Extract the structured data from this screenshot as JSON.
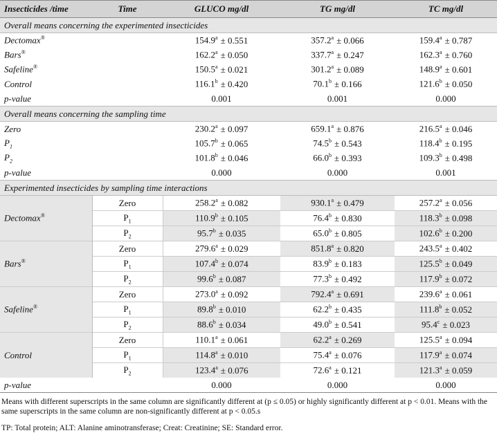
{
  "table": {
    "header": [
      "Insecticides /time",
      "Time",
      "GLUCO mg/dl",
      "TG mg/dl",
      "TC mg/dl"
    ],
    "sections": [
      {
        "title": "Overall means concerning the experimented insecticides",
        "rows": [
          {
            "label": [
              "Dectomax",
              "®"
            ],
            "values": [
              [
                "154.9",
                "a",
                "± 0.551"
              ],
              [
                "357.2",
                "a",
                "± 0.066"
              ],
              [
                "159.4",
                "a",
                "± 0.787"
              ]
            ]
          },
          {
            "label": [
              "Bars",
              "®"
            ],
            "values": [
              [
                "162.2",
                "a",
                "± 0.050"
              ],
              [
                "337.7",
                "a",
                "± 0.247"
              ],
              [
                "162.3",
                "a",
                "± 0.760"
              ]
            ]
          },
          {
            "label": [
              "Safeline",
              "®"
            ],
            "values": [
              [
                "150.5",
                "a",
                "± 0.021"
              ],
              [
                "301.2",
                "a",
                "± 0.089"
              ],
              [
                "148.9",
                "a",
                "± 0.601"
              ]
            ]
          },
          {
            "label": [
              "Control"
            ],
            "values": [
              [
                "116.1",
                "b",
                "± 0.420"
              ],
              [
                "70.1",
                "b",
                "± 0.166"
              ],
              [
                "121.6",
                "b",
                "± 0.050"
              ]
            ]
          },
          {
            "label": [
              "p-value"
            ],
            "values": [
              [
                "0.001"
              ],
              [
                "0.001"
              ],
              [
                "0.000"
              ]
            ]
          }
        ]
      },
      {
        "title": "Overall means concerning the sampling time",
        "rows": [
          {
            "label": [
              "Zero"
            ],
            "values": [
              [
                "230.2",
                "a",
                "± 0.097"
              ],
              [
                "659.1",
                "a",
                "± 0.876"
              ],
              [
                "216.5",
                "a",
                "± 0.046"
              ]
            ]
          },
          {
            "label": [
              "P",
              "1"
            ],
            "values": [
              [
                "105.7",
                "b",
                "± 0.065"
              ],
              [
                "74.5",
                "b",
                "± 0.543"
              ],
              [
                "118.4",
                "b",
                "± 0.195"
              ]
            ]
          },
          {
            "label": [
              "P",
              "2"
            ],
            "values": [
              [
                "101.8",
                "b",
                "± 0.046"
              ],
              [
                "66.0",
                "b",
                "± 0.393"
              ],
              [
                "109.3",
                "b",
                "± 0.498"
              ]
            ]
          },
          {
            "label": [
              "p-value"
            ],
            "values": [
              [
                "0.000"
              ],
              [
                "0.000"
              ],
              [
                "0.001"
              ]
            ]
          }
        ]
      },
      {
        "title": "Experimented insecticides by sampling time interactions",
        "groups": [
          {
            "label": [
              "Dectomax",
              "®"
            ],
            "rows": [
              {
                "time": [
                  "Zero"
                ],
                "values": [
                  [
                    "258.2",
                    "a",
                    "± 0.082"
                  ],
                  [
                    "930.1",
                    "a",
                    "± 0.479"
                  ],
                  [
                    "257.2",
                    "a",
                    "± 0.056"
                  ]
                ]
              },
              {
                "time": [
                  "P",
                  "1"
                ],
                "values": [
                  [
                    "110.9",
                    "b",
                    "± 0.105"
                  ],
                  [
                    "76.4",
                    "b",
                    "± 0.830"
                  ],
                  [
                    "118.3",
                    "b",
                    "± 0.098"
                  ]
                ]
              },
              {
                "time": [
                  "P",
                  "2"
                ],
                "values": [
                  [
                    "95.7",
                    "b",
                    "± 0.035"
                  ],
                  [
                    "65.0",
                    "b",
                    "± 0.805"
                  ],
                  [
                    "102.6",
                    "b",
                    "± 0.200"
                  ]
                ]
              }
            ]
          },
          {
            "label": [
              "Bars",
              "®"
            ],
            "rows": [
              {
                "time": [
                  "Zero"
                ],
                "values": [
                  [
                    "279.6",
                    "a",
                    "± 0.029"
                  ],
                  [
                    "851.8",
                    "a",
                    "± 0.820"
                  ],
                  [
                    "243.5",
                    "a",
                    "± 0.402"
                  ]
                ]
              },
              {
                "time": [
                  "P",
                  "1"
                ],
                "values": [
                  [
                    "107.4",
                    "b",
                    "± 0.074"
                  ],
                  [
                    "83.9",
                    "b",
                    "± 0.183"
                  ],
                  [
                    "125.5",
                    "b",
                    "± 0.049"
                  ]
                ]
              },
              {
                "time": [
                  "P",
                  "2"
                ],
                "values": [
                  [
                    "99.6",
                    "b",
                    "± 0.087"
                  ],
                  [
                    "77.3",
                    "b",
                    "± 0.492"
                  ],
                  [
                    "117.9",
                    "b",
                    "± 0.072"
                  ]
                ]
              }
            ]
          },
          {
            "label": [
              "Safeline",
              "®"
            ],
            "rows": [
              {
                "time": [
                  "Zero"
                ],
                "values": [
                  [
                    "273.0",
                    "a",
                    "± 0.092"
                  ],
                  [
                    "792.4",
                    "a",
                    "± 0.691"
                  ],
                  [
                    "239.6",
                    "a",
                    "± 0.061"
                  ]
                ]
              },
              {
                "time": [
                  "P",
                  "1"
                ],
                "values": [
                  [
                    "89.8",
                    "b",
                    "± 0.010"
                  ],
                  [
                    "62.2",
                    "b",
                    "± 0.435"
                  ],
                  [
                    "111.8",
                    "b",
                    "± 0.052"
                  ]
                ]
              },
              {
                "time": [
                  "P",
                  "2"
                ],
                "values": [
                  [
                    "88.6",
                    "b",
                    "± 0.034"
                  ],
                  [
                    "49.0",
                    "b",
                    "± 0.541"
                  ],
                  [
                    "95.4",
                    "c",
                    "± 0.023"
                  ]
                ]
              }
            ]
          },
          {
            "label": [
              "Control"
            ],
            "rows": [
              {
                "time": [
                  "Zero"
                ],
                "values": [
                  [
                    "110.1",
                    "a",
                    "± 0.061"
                  ],
                  [
                    "62.2",
                    "a",
                    "± 0.269"
                  ],
                  [
                    "125.5",
                    "a",
                    "± 0.094"
                  ]
                ]
              },
              {
                "time": [
                  "P",
                  "1"
                ],
                "values": [
                  [
                    "114.8",
                    "a",
                    "± 0.010"
                  ],
                  [
                    "75.4",
                    "a",
                    "± 0.076"
                  ],
                  [
                    "117.9",
                    "a",
                    "± 0.074"
                  ]
                ]
              },
              {
                "time": [
                  "P",
                  "2"
                ],
                "values": [
                  [
                    "123.4",
                    "a",
                    "± 0.076"
                  ],
                  [
                    "72.6",
                    "a",
                    "± 0.121"
                  ],
                  [
                    "121.3",
                    "a",
                    "± 0.059"
                  ]
                ]
              }
            ]
          }
        ],
        "rows": [
          {
            "label": [
              "p-value"
            ],
            "values": [
              [
                "0.000"
              ],
              [
                "0.000"
              ],
              [
                "0.000"
              ]
            ]
          }
        ]
      }
    ]
  },
  "notes": [
    "Means with different superscripts in the same column are significantly different at (p ≤ 0.05) or highly significantly different at p < 0.01. Means with the same superscripts in the same column are non-significantly different at p < 0.05.s",
    "TP: Total protein; ALT: Alanine aminotransferase; Creat: Creatinine; SE: Standard error."
  ]
}
